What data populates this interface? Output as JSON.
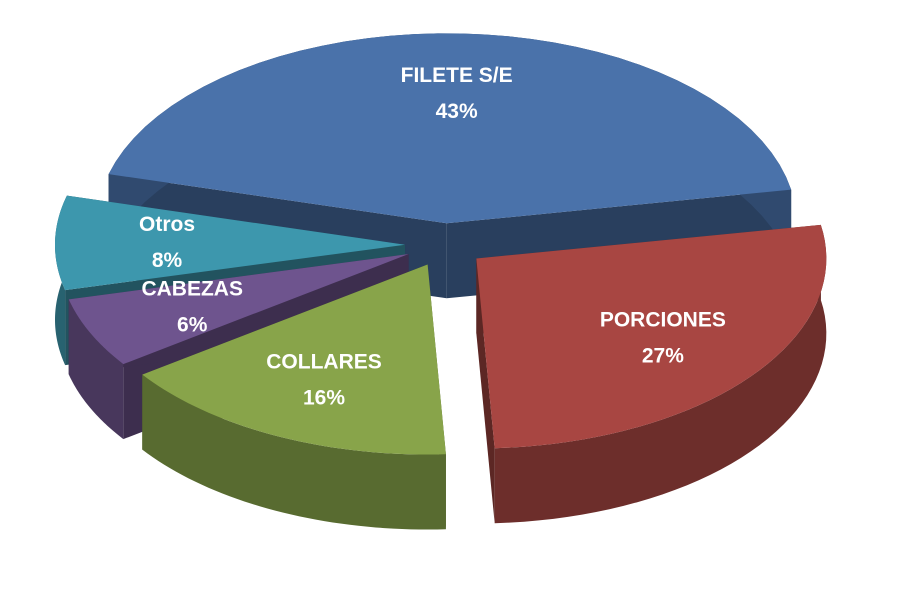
{
  "chart_data": {
    "type": "pie3d",
    "categories": [
      "FILETE S/E",
      "PORCIONES",
      "COLLARES",
      "CABEZAS",
      "Otros"
    ],
    "values": [
      43,
      27,
      16,
      6,
      8
    ],
    "value_labels": [
      "43%",
      "27%",
      "16%",
      "6%",
      "8%"
    ],
    "colors": [
      "#4a72aa",
      "#a84642",
      "#88a44a",
      "#6e548e",
      "#3d97ad"
    ]
  }
}
